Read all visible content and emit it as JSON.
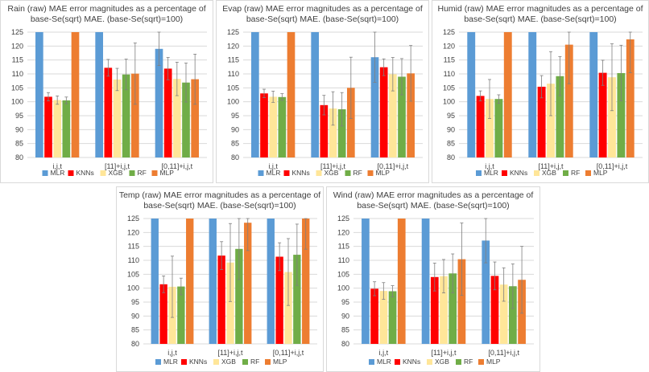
{
  "series_colors": [
    "#5b9bd5",
    "#ff0000",
    "#ffe699",
    "#70ad47",
    "#ed7d31"
  ],
  "chart_data": [
    {
      "type": "bar",
      "title_lines": [
        "Rain (raw) MAE error magnitudes as a percentage of",
        "base-Se(sqrt) MAE. (base-Se(sqrt)=100)"
      ],
      "categories": [
        "i,j,t",
        "[11]+i,j,t",
        "[0,11]+i,j,t"
      ],
      "ylim": [
        80,
        125
      ],
      "yticks": [
        80,
        85,
        90,
        95,
        100,
        105,
        110,
        115,
        120,
        125
      ],
      "series": [
        {
          "name": "MLR",
          "values": [
            125,
            125,
            119
          ],
          "err": [
            0,
            0,
            6
          ]
        },
        {
          "name": "KNNs",
          "values": [
            101.8,
            112.2,
            111.9
          ],
          "err": [
            1.5,
            3,
            4
          ]
        },
        {
          "name": "XGB",
          "values": [
            100.6,
            108,
            108.2
          ],
          "err": [
            1.5,
            4,
            6
          ]
        },
        {
          "name": "RF",
          "values": [
            100.5,
            109.8,
            106.9
          ],
          "err": [
            1.2,
            5.5,
            7
          ]
        },
        {
          "name": "MLP",
          "values": [
            125,
            110.1,
            108.1
          ],
          "err": [
            0,
            11,
            9
          ]
        }
      ]
    },
    {
      "type": "bar",
      "title_lines": [
        "Evap (raw) MAE error magnitudes as a percentage of",
        "base-Se(sqrt) MAE. (base-Se(sqrt)=100)"
      ],
      "categories": [
        "i,j,t",
        "[11]+i,j,t",
        "[0,11]+i,j,t"
      ],
      "ylim": [
        80,
        125
      ],
      "yticks": [
        80,
        85,
        90,
        95,
        100,
        105,
        110,
        115,
        120,
        125
      ],
      "series": [
        {
          "name": "MLR",
          "values": [
            125,
            125,
            116
          ],
          "err": [
            0,
            0,
            9
          ]
        },
        {
          "name": "KNNs",
          "values": [
            103,
            98.8,
            112.4
          ],
          "err": [
            1.5,
            3.5,
            3
          ]
        },
        {
          "name": "XGB",
          "values": [
            101.8,
            97.6,
            109.9
          ],
          "err": [
            2,
            6,
            6
          ]
        },
        {
          "name": "RF",
          "values": [
            101.7,
            97.3,
            109
          ],
          "err": [
            1.2,
            6,
            6.5
          ]
        },
        {
          "name": "MLP",
          "values": [
            125,
            105,
            110.2
          ],
          "err": [
            0,
            11,
            10
          ]
        }
      ]
    },
    {
      "type": "bar",
      "title_lines": [
        "Humid (raw) MAE error magnitudes as a percentage of",
        "base-Se(sqrt) MAE. (base-Se(sqrt)=100)"
      ],
      "categories": [
        "i,j,t",
        "[11]+i,j,t",
        "[0,11]+i,j,t"
      ],
      "ylim": [
        80,
        125
      ],
      "yticks": [
        80,
        85,
        90,
        95,
        100,
        105,
        110,
        115,
        120,
        125
      ],
      "series": [
        {
          "name": "MLR",
          "values": [
            125,
            125,
            125
          ],
          "err": [
            0,
            0,
            0
          ]
        },
        {
          "name": "KNNs",
          "values": [
            102.1,
            105.4,
            110.4
          ],
          "err": [
            1.8,
            4,
            4.5
          ]
        },
        {
          "name": "XGB",
          "values": [
            101,
            106.5,
            108.8
          ],
          "err": [
            7,
            11.5,
            12
          ]
        },
        {
          "name": "RF",
          "values": [
            101,
            109.2,
            110.3
          ],
          "err": [
            1.5,
            7,
            10
          ]
        },
        {
          "name": "MLP",
          "values": [
            125,
            120.5,
            122.4
          ],
          "err": [
            0,
            14,
            12
          ]
        }
      ]
    },
    {
      "type": "bar",
      "title_lines": [
        "Temp (raw) MAE error magnitudes as a percentage of",
        "base-Se(sqrt) MAE. (base-Se(sqrt)=100)"
      ],
      "categories": [
        "i,j,t",
        "[11]+i,j,t",
        "[0,11]+i,j,t"
      ],
      "ylim": [
        80,
        125
      ],
      "yticks": [
        80,
        85,
        90,
        95,
        100,
        105,
        110,
        115,
        120,
        125
      ],
      "series": [
        {
          "name": "MLR",
          "values": [
            125,
            125,
            125
          ],
          "err": [
            0,
            0,
            0
          ]
        },
        {
          "name": "KNNs",
          "values": [
            101.4,
            111.7,
            111.3
          ],
          "err": [
            3,
            5,
            5
          ]
        },
        {
          "name": "XGB",
          "values": [
            100.5,
            109.2,
            105.8
          ],
          "err": [
            11,
            14,
            12
          ]
        },
        {
          "name": "RF",
          "values": [
            100.6,
            114.1,
            112
          ],
          "err": [
            3,
            11,
            11
          ]
        },
        {
          "name": "MLP",
          "values": [
            125,
            123.5,
            125
          ],
          "err": [
            0,
            10,
            11
          ]
        }
      ]
    },
    {
      "type": "bar",
      "title_lines": [
        "Wind (raw) MAE error magnitudes as a percentage of",
        "base-Se(sqrt) MAE. (base-Se(sqrt)=100)"
      ],
      "categories": [
        "i,j,t",
        "[11]+i,j,t",
        "[0,11]+i,j,t"
      ],
      "ylim": [
        80,
        125
      ],
      "yticks": [
        80,
        85,
        90,
        95,
        100,
        105,
        110,
        115,
        120,
        125
      ],
      "series": [
        {
          "name": "MLR",
          "values": [
            125,
            125,
            117.1
          ],
          "err": [
            0,
            0,
            8
          ]
        },
        {
          "name": "KNNs",
          "values": [
            99.8,
            104,
            104.4
          ],
          "err": [
            2.5,
            5,
            5
          ]
        },
        {
          "name": "XGB",
          "values": [
            99,
            104.3,
            101.3
          ],
          "err": [
            3,
            6,
            6
          ]
        },
        {
          "name": "RF",
          "values": [
            98.9,
            105.3,
            100.7
          ],
          "err": [
            2,
            7,
            8
          ]
        },
        {
          "name": "MLP",
          "values": [
            125,
            110.4,
            103
          ],
          "err": [
            0,
            13,
            12
          ]
        }
      ]
    }
  ]
}
